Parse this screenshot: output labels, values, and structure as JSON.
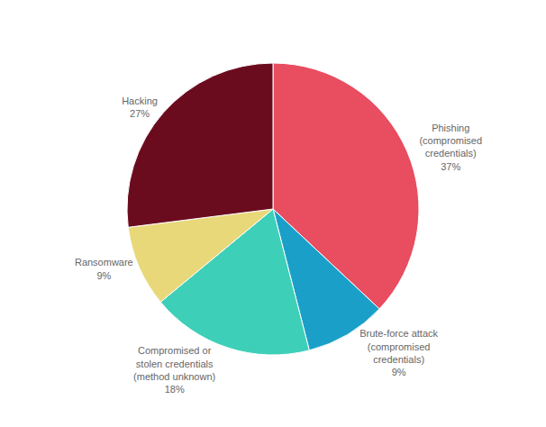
{
  "chart_data": {
    "type": "pie",
    "categories": [
      "Phishing\n(compromised\ncredentials)",
      "Brute-force attack\n(compromised\ncredentials)",
      "Compromised or\nstolen credentials\n(method unknown)",
      "Ransomware",
      "Hacking"
    ],
    "values": [
      37,
      9,
      18,
      9,
      27
    ],
    "value_labels": [
      "37%",
      "9%",
      "18%",
      "9%",
      "27%"
    ],
    "colors": [
      "#e84d60",
      "#1aa0c8",
      "#3ecfb8",
      "#e8d87a",
      "#6b0c1e"
    ],
    "data_labels": true
  }
}
